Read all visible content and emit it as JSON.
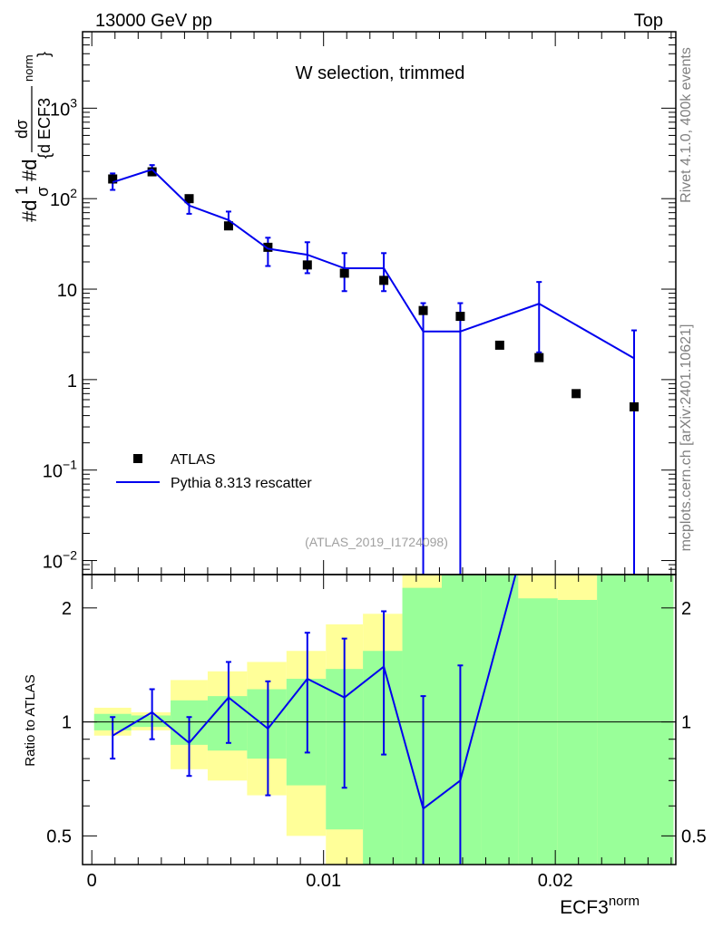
{
  "header": {
    "left": "13000 GeV pp",
    "right": "Top"
  },
  "annotation": "W selection, trimmed",
  "analysis_id": "(ATLAS_2019_I1724098)",
  "side_labels": {
    "rivet": "Rivet 4.1.0,  400k events",
    "mcplots": "mcplots.cern.ch [arXiv:2401.10621]"
  },
  "y_label_parts": {
    "prefix": "#d",
    "frac_top": "1",
    "frac_bot": "σ",
    "mid": "#d",
    "dsigma": "dσ",
    "denom": "{d ECF3",
    "norm": "norm",
    "close": "}"
  },
  "ratio_ylabel": "Ratio to ATLAS",
  "x_label": "ECF3",
  "x_label_sup": "norm",
  "legend": [
    {
      "label": "ATLAS",
      "kind": "data"
    },
    {
      "label": "Pythia 8.313 rescatter",
      "kind": "mc"
    }
  ],
  "colors": {
    "mc": "#0000ee",
    "band_inner": "#99ff99",
    "band_outer": "#ffff99",
    "data": "#000000"
  },
  "main_ticks": [
    {
      "value": 0.01,
      "label": "10",
      "sup": "−2"
    },
    {
      "value": 0.1,
      "label": "10",
      "sup": "−1"
    },
    {
      "value": 1,
      "label": "1",
      "sup": ""
    },
    {
      "value": 10,
      "label": "10",
      "sup": ""
    },
    {
      "value": 100,
      "label": "10",
      "sup": "2"
    },
    {
      "value": 1000,
      "label": "10",
      "sup": "3"
    }
  ],
  "ratio_ticks": [
    {
      "value": 0.5,
      "label": "0.5"
    },
    {
      "value": 1,
      "label": "1"
    },
    {
      "value": 2,
      "label": "2"
    }
  ],
  "x_ticks": [
    {
      "value": 0,
      "label": "0"
    },
    {
      "value": 0.01,
      "label": "0.01"
    },
    {
      "value": 0.02,
      "label": "0.02"
    }
  ],
  "chart_data": {
    "type": "scatter",
    "title": "W selection, trimmed",
    "xlabel": "ECF3^norm",
    "ylabel": "1/σ dσ/d ECF3^norm",
    "ratio_ylabel": "Ratio to ATLAS",
    "xlim": [
      -0.0004,
      0.0252
    ],
    "ylim_main": [
      0.007,
      7000
    ],
    "ylim_ratio": [
      0.42,
      2.45
    ],
    "log_y": true,
    "bin_edges": [
      0.0001,
      0.0017,
      0.0034,
      0.005,
      0.0067,
      0.0084,
      0.0101,
      0.0117,
      0.0134,
      0.0151,
      0.0168,
      0.0184,
      0.0201,
      0.0218,
      0.0251
    ],
    "data": {
      "name": "ATLAS",
      "x": [
        0.0009,
        0.0026,
        0.0042,
        0.0059,
        0.0076,
        0.0093,
        0.0109,
        0.0126,
        0.0143,
        0.0159,
        0.0176,
        0.0193,
        0.0209,
        0.0234
      ],
      "y": [
        165,
        198,
        100,
        50,
        29,
        18.5,
        15,
        12.5,
        5.8,
        5.0,
        2.4,
        1.75,
        0.7,
        0.5
      ]
    },
    "mc": {
      "name": "Pythia 8.313 rescatter",
      "x": [
        0.0009,
        0.0026,
        0.0042,
        0.0059,
        0.0076,
        0.0093,
        0.0109,
        0.0126,
        0.0143,
        0.0159,
        0.0193,
        0.0234
      ],
      "y": [
        152,
        210,
        84,
        58,
        28,
        24,
        17,
        17,
        3.4,
        3.4,
        6.9,
        1.72
      ],
      "err_up": [
        190,
        235,
        105,
        72,
        37,
        33,
        25,
        25,
        7.0,
        7.0,
        12,
        3.5
      ],
      "err_down": [
        125,
        185,
        68,
        46,
        18,
        15,
        9.5,
        9.5,
        0.001,
        0.001,
        2.0,
        0.001
      ]
    },
    "ratio": {
      "x": [
        0.0009,
        0.0026,
        0.0042,
        0.0059,
        0.0076,
        0.0093,
        0.0109,
        0.0126,
        0.0143,
        0.0159,
        0.0184
      ],
      "y": [
        0.92,
        1.06,
        0.88,
        1.16,
        0.96,
        1.3,
        1.16,
        1.4,
        0.59,
        0.7,
        2.6
      ],
      "err_up": [
        1.03,
        1.22,
        1.03,
        1.44,
        1.28,
        1.72,
        1.66,
        1.96,
        1.17,
        1.41,
        null
      ],
      "err_down": [
        0.8,
        0.9,
        0.72,
        0.88,
        0.64,
        0.83,
        0.67,
        0.82,
        0.3,
        0.3,
        null
      ]
    },
    "band_inner": {
      "lo": [
        0.95,
        0.97,
        0.87,
        0.84,
        0.8,
        0.68,
        0.52,
        0.35,
        0.3,
        0.3,
        0.3,
        0.3,
        0.3,
        0.3
      ],
      "hi": [
        1.05,
        1.04,
        1.14,
        1.17,
        1.22,
        1.3,
        1.38,
        1.54,
        2.26,
        2.7,
        3.0,
        2.12,
        2.1,
        3.0
      ]
    },
    "band_outer": {
      "lo": [
        0.92,
        0.95,
        0.75,
        0.7,
        0.64,
        0.5,
        0.38,
        0.3,
        0.3,
        0.3,
        0.3,
        0.3,
        0.3,
        0.3
      ],
      "hi": [
        1.09,
        1.06,
        1.29,
        1.36,
        1.44,
        1.54,
        1.81,
        1.93,
        3.0,
        2.67,
        3.0,
        3.0,
        3.0,
        3.0
      ]
    }
  }
}
